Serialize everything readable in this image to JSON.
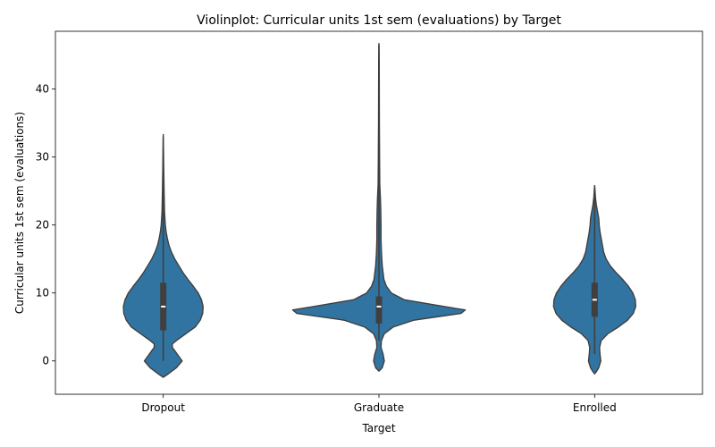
{
  "chart_data": {
    "type": "violin",
    "title": "Violinplot: Curricular units 1st sem (evaluations) by Target",
    "xlabel": "Target",
    "ylabel": "Curricular units 1st sem (evaluations)",
    "ylim": [
      -4.9,
      48.5
    ],
    "yticks": [
      0,
      10,
      20,
      30,
      40
    ],
    "grid": false,
    "legend": "none",
    "fill_color": "#3274a1",
    "edge_color": "#3f3f3f",
    "categories": [
      "Dropout",
      "Graduate",
      "Enrolled"
    ],
    "series": [
      {
        "category": "Dropout",
        "min": 0,
        "q1": 4.5,
        "median": 8,
        "q3": 11.5,
        "whisker_high": 18,
        "max": 33,
        "cut_low": -2.4,
        "cut_high": 33.3,
        "profile": [
          [
            -2.4,
            0.0
          ],
          [
            -2.0,
            0.1
          ],
          [
            -1.0,
            0.32
          ],
          [
            0.0,
            0.46
          ],
          [
            1.0,
            0.34
          ],
          [
            1.5,
            0.28
          ],
          [
            2.0,
            0.22
          ],
          [
            2.5,
            0.22
          ],
          [
            3.0,
            0.32
          ],
          [
            4.0,
            0.55
          ],
          [
            5.0,
            0.78
          ],
          [
            6.0,
            0.9
          ],
          [
            7.0,
            0.96
          ],
          [
            8.0,
            0.97
          ],
          [
            9.0,
            0.93
          ],
          [
            10.0,
            0.85
          ],
          [
            11.0,
            0.73
          ],
          [
            12.0,
            0.6
          ],
          [
            13.0,
            0.48
          ],
          [
            14.0,
            0.38
          ],
          [
            15.0,
            0.28
          ],
          [
            16.0,
            0.2
          ],
          [
            17.0,
            0.14
          ],
          [
            18.0,
            0.1
          ],
          [
            19.0,
            0.07
          ],
          [
            20.0,
            0.05
          ],
          [
            22.0,
            0.03
          ],
          [
            25.0,
            0.02
          ],
          [
            28.0,
            0.012
          ],
          [
            30.0,
            0.008
          ],
          [
            33.3,
            0.0
          ]
        ]
      },
      {
        "category": "Graduate",
        "min": 3,
        "q1": 5.5,
        "median": 8,
        "q3": 9.5,
        "whisker_high": 13,
        "max": 46.5,
        "cut_low": -1.5,
        "cut_high": 46.7,
        "profile": [
          [
            -1.5,
            0.0
          ],
          [
            -1.0,
            0.08
          ],
          [
            0.0,
            0.13
          ],
          [
            1.0,
            0.1
          ],
          [
            2.0,
            0.05
          ],
          [
            3.0,
            0.06
          ],
          [
            4.0,
            0.13
          ],
          [
            5.0,
            0.35
          ],
          [
            6.0,
            0.85
          ],
          [
            7.0,
            2.0
          ],
          [
            7.5,
            2.1
          ],
          [
            8.0,
            1.6
          ],
          [
            9.0,
            0.62
          ],
          [
            10.0,
            0.3
          ],
          [
            11.0,
            0.18
          ],
          [
            12.0,
            0.12
          ],
          [
            14.0,
            0.08
          ],
          [
            16.0,
            0.06
          ],
          [
            18.0,
            0.05
          ],
          [
            20.0,
            0.05
          ],
          [
            22.0,
            0.045
          ],
          [
            24.0,
            0.035
          ],
          [
            26.0,
            0.02
          ],
          [
            30.0,
            0.015
          ],
          [
            35.0,
            0.01
          ],
          [
            40.0,
            0.008
          ],
          [
            44.0,
            0.006
          ],
          [
            46.7,
            0.0
          ]
        ]
      },
      {
        "category": "Enrolled",
        "min": 1,
        "q1": 6.5,
        "median": 9,
        "q3": 11.5,
        "whisker_high": 17,
        "max": 25.5,
        "cut_low": -1.9,
        "cut_high": 25.8,
        "profile": [
          [
            -1.9,
            0.0
          ],
          [
            -1.5,
            0.05
          ],
          [
            -1.0,
            0.1
          ],
          [
            0.0,
            0.15
          ],
          [
            1.0,
            0.13
          ],
          [
            2.0,
            0.12
          ],
          [
            3.0,
            0.16
          ],
          [
            4.0,
            0.32
          ],
          [
            5.0,
            0.58
          ],
          [
            6.0,
            0.8
          ],
          [
            7.0,
            0.94
          ],
          [
            8.0,
            1.0
          ],
          [
            9.0,
            0.99
          ],
          [
            10.0,
            0.93
          ],
          [
            11.0,
            0.82
          ],
          [
            12.0,
            0.68
          ],
          [
            13.0,
            0.52
          ],
          [
            14.0,
            0.38
          ],
          [
            15.0,
            0.28
          ],
          [
            16.0,
            0.22
          ],
          [
            17.0,
            0.19
          ],
          [
            18.0,
            0.16
          ],
          [
            19.0,
            0.13
          ],
          [
            20.0,
            0.11
          ],
          [
            21.0,
            0.1
          ],
          [
            22.0,
            0.07
          ],
          [
            23.0,
            0.04
          ],
          [
            24.0,
            0.02
          ],
          [
            25.0,
            0.01
          ],
          [
            25.8,
            0.0
          ]
        ]
      }
    ]
  }
}
